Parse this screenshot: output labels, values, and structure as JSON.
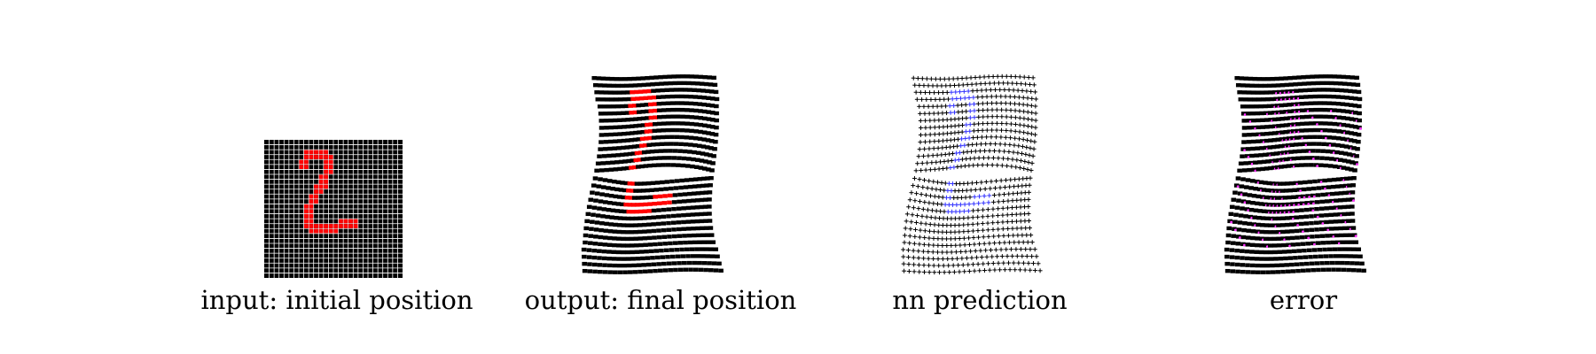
{
  "panels": [
    {
      "id": "input",
      "caption": "input: initial position"
    },
    {
      "id": "output",
      "caption": "output: final position"
    },
    {
      "id": "prediction",
      "caption": "nn prediction"
    },
    {
      "id": "error",
      "caption": "error"
    }
  ],
  "colors": {
    "background": "#ffffff",
    "grid": "#000000",
    "input_digit": "#ff0000",
    "output_digit": "#ff0000",
    "prediction_digit": "#3333ff",
    "error_overlay": "#ff33ff"
  },
  "digit": "2"
}
